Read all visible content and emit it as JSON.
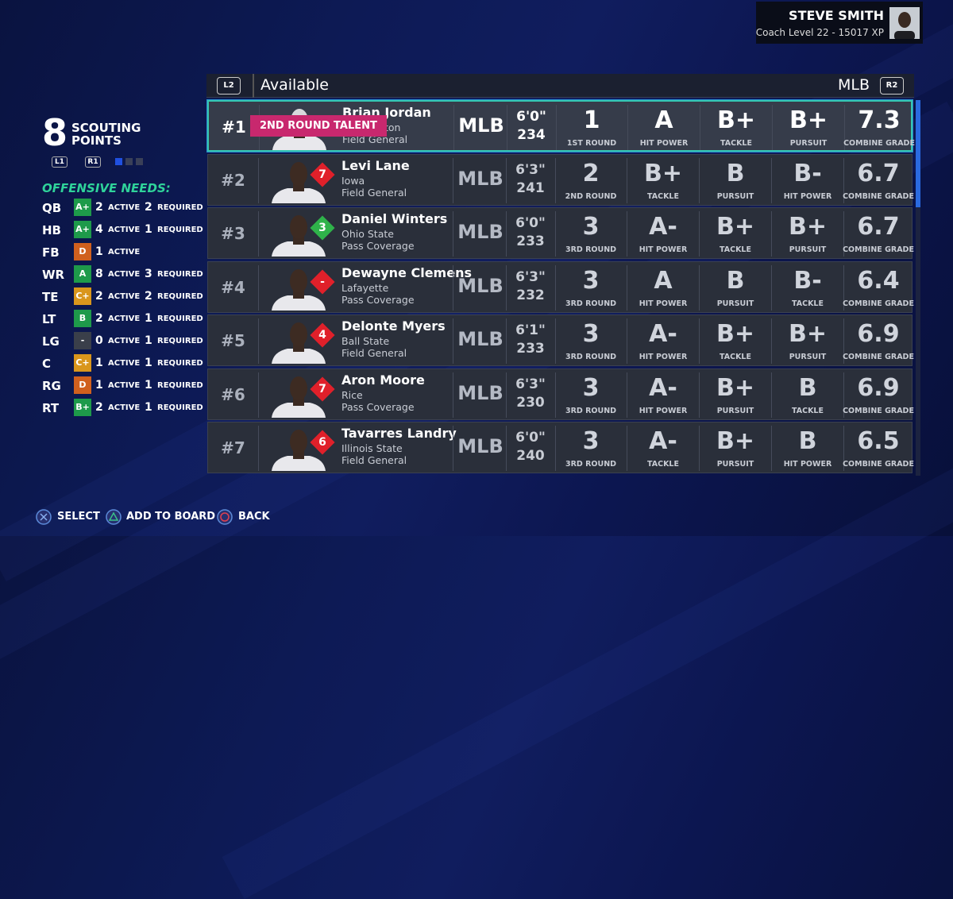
{
  "profile": {
    "name": "STEVE SMITH",
    "level": "Coach Level 22 - 15017 XP"
  },
  "scouting": {
    "points": "8",
    "label_top": "SCOUTING",
    "label_bottom": "POINTS",
    "buttons": [
      "L1",
      "R1"
    ]
  },
  "needs": {
    "title": "OFFENSIVE NEEDS:",
    "rows": [
      {
        "pos": "QB",
        "grade": "A+",
        "color": "#1e9a4a",
        "active": "2",
        "active_label": "ACTIVE",
        "required": "2",
        "required_label": "REQUIRED"
      },
      {
        "pos": "HB",
        "grade": "A+",
        "color": "#1e9a4a",
        "active": "4",
        "active_label": "ACTIVE",
        "required": "1",
        "required_label": "REQUIRED"
      },
      {
        "pos": "FB",
        "grade": "D",
        "color": "#d0601e",
        "active": "1",
        "active_label": "ACTIVE"
      },
      {
        "pos": "WR",
        "grade": "A",
        "color": "#1e9a4a",
        "active": "8",
        "active_label": "ACTIVE",
        "required": "3",
        "required_label": "REQUIRED"
      },
      {
        "pos": "TE",
        "grade": "C+",
        "color": "#d9961c",
        "active": "2",
        "active_label": "ACTIVE",
        "required": "2",
        "required_label": "REQUIRED"
      },
      {
        "pos": "LT",
        "grade": "B",
        "color": "#1e9a4a",
        "active": "2",
        "active_label": "ACTIVE",
        "required": "1",
        "required_label": "REQUIRED"
      },
      {
        "pos": "LG",
        "grade": "-",
        "color": "#3a3f4a",
        "active": "0",
        "active_label": "ACTIVE",
        "required": "1",
        "required_label": "REQUIRED"
      },
      {
        "pos": "C",
        "grade": "C+",
        "color": "#d9961c",
        "active": "1",
        "active_label": "ACTIVE",
        "required": "1",
        "required_label": "REQUIRED"
      },
      {
        "pos": "RG",
        "grade": "D",
        "color": "#d0601e",
        "active": "1",
        "active_label": "ACTIVE",
        "required": "1",
        "required_label": "REQUIRED"
      },
      {
        "pos": "RT",
        "grade": "B+",
        "color": "#1e9a4a",
        "active": "2",
        "active_label": "ACTIVE",
        "required": "1",
        "required_label": "REQUIRED"
      }
    ]
  },
  "list": {
    "left_button": "L2",
    "title": "Available",
    "position": "MLB",
    "right_button": "R2",
    "rows": [
      {
        "rank": "#1",
        "name": "Brian Jordan",
        "school": "Washington",
        "archetype": "Field General",
        "banner": "2ND ROUND TALENT",
        "selected": true,
        "pos": "MLB",
        "height": "6'0\"",
        "weight": "234",
        "round": "1",
        "round_label": "1ST ROUND",
        "grades": [
          {
            "grade": "A",
            "label": "HIT POWER"
          },
          {
            "grade": "B+",
            "label": "TACKLE"
          },
          {
            "grade": "B+",
            "label": "PURSUIT"
          }
        ],
        "combine": "7.3",
        "combine_label": "COMBINE GRADE"
      },
      {
        "rank": "#2",
        "name": "Levi Lane",
        "school": "Iowa",
        "archetype": "Field General",
        "badge": "7",
        "badge_color": "#e0202a",
        "pos": "MLB",
        "height": "6'3\"",
        "weight": "241",
        "round": "2",
        "round_label": "2ND ROUND",
        "grades": [
          {
            "grade": "B+",
            "label": "TACKLE"
          },
          {
            "grade": "B",
            "label": "PURSUIT"
          },
          {
            "grade": "B-",
            "label": "HIT POWER"
          }
        ],
        "combine": "6.7",
        "combine_label": "COMBINE GRADE"
      },
      {
        "rank": "#3",
        "name": "Daniel Winters",
        "school": "Ohio State",
        "archetype": "Pass Coverage",
        "badge": "3",
        "badge_color": "#2fb34a",
        "pos": "MLB",
        "height": "6'0\"",
        "weight": "233",
        "round": "3",
        "round_label": "3RD ROUND",
        "grades": [
          {
            "grade": "A-",
            "label": "HIT POWER"
          },
          {
            "grade": "B+",
            "label": "TACKLE"
          },
          {
            "grade": "B+",
            "label": "PURSUIT"
          }
        ],
        "combine": "6.7",
        "combine_label": "COMBINE GRADE"
      },
      {
        "rank": "#4",
        "name": "Dewayne Clemens",
        "school": "Lafayette",
        "archetype": "Pass Coverage",
        "badge": "-",
        "badge_color": "#e0202a",
        "pos": "MLB",
        "height": "6'3\"",
        "weight": "232",
        "round": "3",
        "round_label": "3RD ROUND",
        "grades": [
          {
            "grade": "A",
            "label": "HIT POWER"
          },
          {
            "grade": "B",
            "label": "PURSUIT"
          },
          {
            "grade": "B-",
            "label": "TACKLE"
          }
        ],
        "combine": "6.4",
        "combine_label": "COMBINE GRADE"
      },
      {
        "rank": "#5",
        "name": "Delonte Myers",
        "school": "Ball State",
        "archetype": "Field General",
        "badge": "4",
        "badge_color": "#e0202a",
        "pos": "MLB",
        "height": "6'1\"",
        "weight": "233",
        "round": "3",
        "round_label": "3RD ROUND",
        "grades": [
          {
            "grade": "A-",
            "label": "HIT POWER"
          },
          {
            "grade": "B+",
            "label": "TACKLE"
          },
          {
            "grade": "B+",
            "label": "PURSUIT"
          }
        ],
        "combine": "6.9",
        "combine_label": "COMBINE GRADE"
      },
      {
        "rank": "#6",
        "name": "Aron Moore",
        "school": "Rice",
        "archetype": "Pass Coverage",
        "badge": "7",
        "badge_color": "#e0202a",
        "pos": "MLB",
        "height": "6'3\"",
        "weight": "230",
        "round": "3",
        "round_label": "3RD ROUND",
        "grades": [
          {
            "grade": "A-",
            "label": "HIT POWER"
          },
          {
            "grade": "B+",
            "label": "PURSUIT"
          },
          {
            "grade": "B",
            "label": "TACKLE"
          }
        ],
        "combine": "6.9",
        "combine_label": "COMBINE GRADE"
      },
      {
        "rank": "#7",
        "name": "Tavarres Landry",
        "school": "Illinois State",
        "archetype": "Field General",
        "badge": "6",
        "badge_color": "#e0202a",
        "pos": "MLB",
        "height": "6'0\"",
        "weight": "240",
        "round": "3",
        "round_label": "3RD ROUND",
        "grades": [
          {
            "grade": "A-",
            "label": "TACKLE"
          },
          {
            "grade": "B+",
            "label": "PURSUIT"
          },
          {
            "grade": "B",
            "label": "HIT POWER"
          }
        ],
        "combine": "6.5",
        "combine_label": "COMBINE GRADE"
      }
    ]
  },
  "footer": [
    {
      "label": "SELECT"
    },
    {
      "label": "ADD TO BOARD"
    },
    {
      "label": "BACK"
    }
  ]
}
